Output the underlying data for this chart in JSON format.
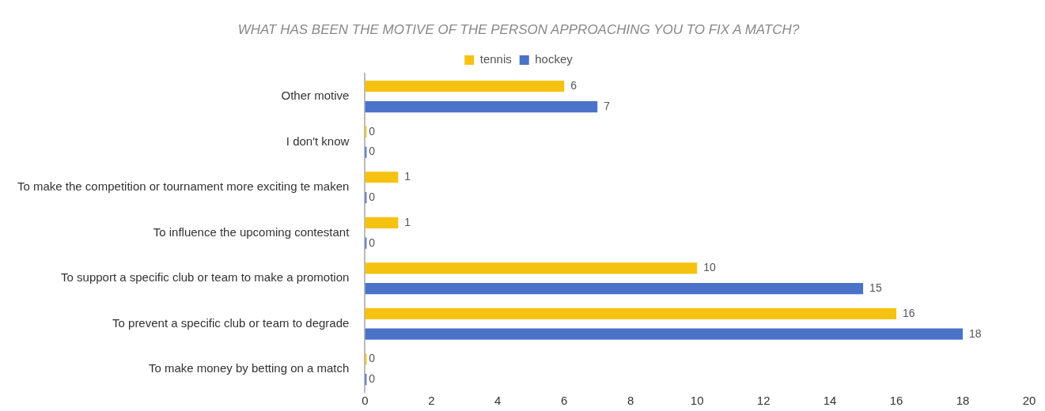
{
  "chart_data": {
    "type": "bar",
    "orientation": "horizontal",
    "title": "WHAT HAS BEEN THE MOTIVE OF THE PERSON APPROACHING YOU TO FIX A MATCH?",
    "categories": [
      "Other motive",
      "I don't know",
      "To make the competition or tournament more exciting te maken",
      "To influence the upcoming contestant",
      "To support a specific club or team to make a promotion",
      "To prevent a specific club or team to degrade",
      "To make money by betting on a match"
    ],
    "series": [
      {
        "name": "tennis",
        "color": "#f5c211",
        "values": [
          6,
          0,
          1,
          1,
          10,
          16,
          0
        ]
      },
      {
        "name": "hockey",
        "color": "#4a72c8",
        "values": [
          7,
          0,
          0,
          0,
          15,
          18,
          0
        ]
      }
    ],
    "xlim": [
      0,
      20
    ],
    "xticks": [
      0,
      2,
      4,
      6,
      8,
      10,
      12,
      14,
      16,
      18,
      20
    ],
    "grid": false,
    "legend": "top",
    "data_labels": true
  }
}
